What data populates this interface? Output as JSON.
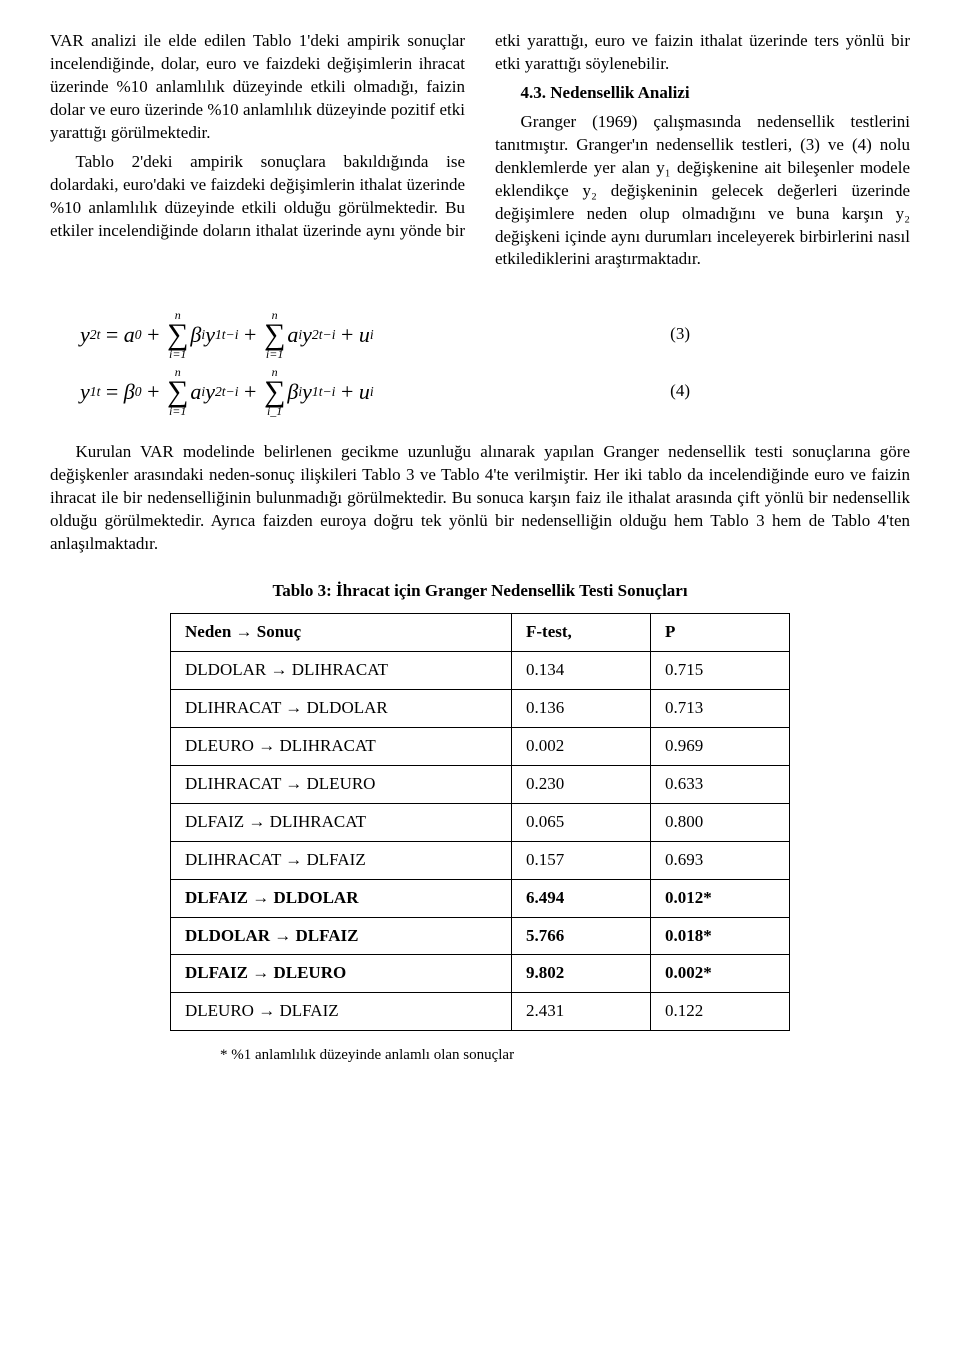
{
  "paragraphs": {
    "p1": "VAR analizi ile elde edilen Tablo 1'deki ampirik sonuçlar incelendiğinde, dolar, euro ve faizdeki değişimlerin ihracat üzerinde %10 anlamlılık düzeyinde etkili olmadığı, faizin dolar ve euro üzerinde %10 anlamlılık düzeyinde pozitif etki yarattığı görülmektedir.",
    "p2": "Tablo 2'deki ampirik sonuçlara bakıldığında ise dolardaki, euro'daki ve faizdeki değişimlerin ithalat üzerinde %10 anlamlılık düzeyinde etkili olduğu görülmektedir. Bu etkiler incelendiğinde doların ithalat üzerinde aynı yönde bir etki yarattığı, euro ve faizin ithalat üzerinde ters yönlü bir etki yarattığı söylenebilir.",
    "sec_head": "4.3. Nedensellik Analizi",
    "p3": "Granger (1969) çalışmasında nedensellik testlerini tanıtmıştır. Granger'ın nedensellik testleri, (3) ve (4) nolu denklemlerde yer alan y₁ değişkenine ait bileşenler modele eklendikçe y₂ değişkeninin gelecek değerleri üzerinde değişimlere neden olup olmadığını ve buna karşın y₂ değişkeni içinde aynı durumları inceleyerek birbirlerini nasıl etkilediklerini araştırmaktadır."
  },
  "equations": {
    "eq3_num": "(3)",
    "eq4_num": "(4)"
  },
  "full_paragraph": "Kurulan VAR modelinde belirlenen gecikme uzunluğu alınarak yapılan Granger nedensellik testi sonuçlarına göre değişkenler arasındaki neden-sonuç ilişkileri Tablo 3 ve Tablo 4'te verilmiştir. Her iki tablo da incelendiğinde euro ve faizin ihracat ile bir nedenselliğinin bulunmadığı görülmektedir. Bu sonuca karşın faiz ile ithalat arasında çift yönlü bir nedensellik olduğu görülmektedir. Ayrıca faizden euroya doğru tek yönlü bir nedenselliğin olduğu hem Tablo 3 hem de Tablo 4'ten anlaşılmaktadır.",
  "table3": {
    "caption": "Tablo 3: İhracat için Granger Nedensellik Testi Sonuçları",
    "columns": [
      "Neden → Sonuç",
      "F-test,",
      "P"
    ],
    "rows": [
      {
        "cells": [
          "DLDOLAR → DLIHRACAT",
          "0.134",
          "0.715"
        ],
        "bold": false
      },
      {
        "cells": [
          "DLIHRACAT → DLDOLAR",
          "0.136",
          "0.713"
        ],
        "bold": false
      },
      {
        "cells": [
          "DLEURO → DLIHRACAT",
          "0.002",
          "0.969"
        ],
        "bold": false
      },
      {
        "cells": [
          "DLIHRACAT → DLEURO",
          "0.230",
          "0.633"
        ],
        "bold": false
      },
      {
        "cells": [
          "DLFAIZ → DLIHRACAT",
          "0.065",
          "0.800"
        ],
        "bold": false
      },
      {
        "cells": [
          "DLIHRACAT → DLFAIZ",
          "0.157",
          "0.693"
        ],
        "bold": false
      },
      {
        "cells": [
          "DLFAIZ → DLDOLAR",
          "6.494",
          "0.012*"
        ],
        "bold": true
      },
      {
        "cells": [
          "DLDOLAR → DLFAIZ",
          "5.766",
          "0.018*"
        ],
        "bold": true
      },
      {
        "cells": [
          "DLFAIZ → DLEURO",
          "9.802",
          "0.002*"
        ],
        "bold": true
      },
      {
        "cells": [
          "DLEURO → DLFAIZ",
          "2.431",
          "0.122"
        ],
        "bold": false
      }
    ],
    "note": "* %1 anlamlılık düzeyinde anlamlı olan sonuçlar"
  }
}
